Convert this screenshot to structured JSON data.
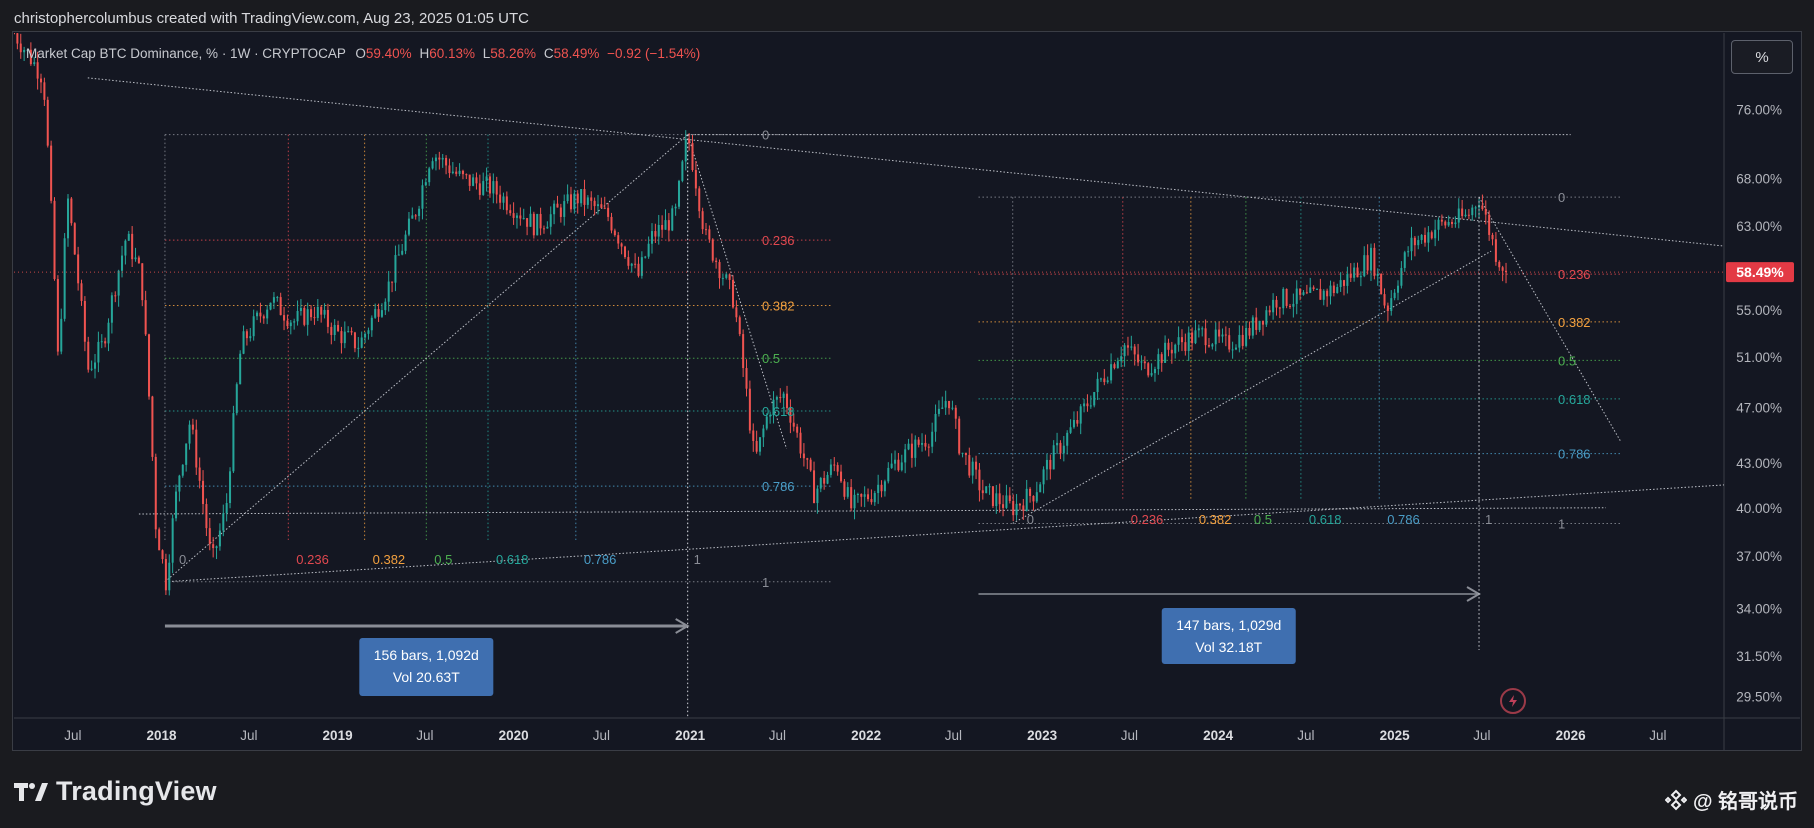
{
  "header": {
    "attribution": "christophercolumbus created with TradingView.com, Aug 23, 2025 01:05 UTC"
  },
  "legend": {
    "title": "Market Cap BTC Dominance, % · 1W · CRYPTOCAP",
    "o_label": "O",
    "o_value": "59.40%",
    "h_label": "H",
    "h_value": "60.13%",
    "l_label": "L",
    "l_value": "58.26%",
    "c_label": "C",
    "c_value": "58.49%",
    "change": "−0.92 (−1.54%)"
  },
  "scale_button": {
    "label": "%"
  },
  "footer": {
    "brand": "TradingView",
    "watermark": "@ 铭哥说币"
  },
  "colors": {
    "up": "#26a69a",
    "down": "#ef5350",
    "background": "#141722",
    "fib_0236": "#e0484f",
    "fib_0382": "#f2a03f",
    "fib_05": "#4caf50",
    "fib_0618": "#26a69a",
    "fib_0786": "#4a9dc7",
    "fib_neutral": "#8a8d96",
    "measure_box": "#3f6fb0"
  },
  "chart_data": {
    "type": "candlestick",
    "title": "Market Cap BTC Dominance, %",
    "interval": "1W",
    "ylabel": "%",
    "y_scale": "log",
    "ylim": [
      28.5,
      86
    ],
    "y_ticks": [
      76,
      68,
      63,
      59,
      55,
      51,
      47,
      43,
      40,
      37,
      34,
      31.5,
      29.5
    ],
    "y_tick_labels": [
      "76.00%",
      "68.00%",
      "63.00%",
      "",
      "55.00%",
      "51.00%",
      "47.00%",
      "43.00%",
      "40.00%",
      "37.00%",
      "34.00%",
      "31.50%",
      "29.50%"
    ],
    "xlim": [
      "2017-03-01",
      "2026-11-15"
    ],
    "x_ticks": [
      {
        "date": "2017-07-01",
        "label": "Jul"
      },
      {
        "date": "2018-01-01",
        "label": "2018"
      },
      {
        "date": "2018-07-01",
        "label": "Jul"
      },
      {
        "date": "2019-01-01",
        "label": "2019"
      },
      {
        "date": "2019-07-01",
        "label": "Jul"
      },
      {
        "date": "2020-01-01",
        "label": "2020"
      },
      {
        "date": "2020-07-01",
        "label": "Jul"
      },
      {
        "date": "2021-01-01",
        "label": "2021"
      },
      {
        "date": "2021-07-01",
        "label": "Jul"
      },
      {
        "date": "2022-01-01",
        "label": "2022"
      },
      {
        "date": "2022-07-01",
        "label": "Jul"
      },
      {
        "date": "2023-01-01",
        "label": "2023"
      },
      {
        "date": "2023-07-01",
        "label": "Jul"
      },
      {
        "date": "2024-01-01",
        "label": "2024"
      },
      {
        "date": "2024-07-01",
        "label": "Jul"
      },
      {
        "date": "2025-01-01",
        "label": "2025"
      },
      {
        "date": "2025-07-01",
        "label": "Jul"
      },
      {
        "date": "2026-01-01",
        "label": "2026"
      },
      {
        "date": "2026-07-01",
        "label": "Jul"
      }
    ],
    "price_path": [
      [
        "2017-03-01",
        86
      ],
      [
        "2017-05-01",
        80
      ],
      [
        "2017-06-01",
        50
      ],
      [
        "2017-06-20",
        66
      ],
      [
        "2017-08-01",
        50
      ],
      [
        "2017-09-01",
        52
      ],
      [
        "2017-10-20",
        62
      ],
      [
        "2017-11-20",
        58
      ],
      [
        "2017-12-20",
        39
      ],
      [
        "2018-01-10",
        35.5
      ],
      [
        "2018-02-05",
        42
      ],
      [
        "2018-03-01",
        46
      ],
      [
        "2018-04-15",
        36.5
      ],
      [
        "2018-05-15",
        40
      ],
      [
        "2018-06-15",
        52
      ],
      [
        "2018-08-15",
        56
      ],
      [
        "2018-10-01",
        54
      ],
      [
        "2018-11-15",
        55
      ],
      [
        "2019-01-01",
        53
      ],
      [
        "2019-02-15",
        52
      ],
      [
        "2019-04-15",
        57
      ],
      [
        "2019-06-15",
        65
      ],
      [
        "2019-07-15",
        71
      ],
      [
        "2019-09-15",
        68
      ],
      [
        "2019-11-15",
        67
      ],
      [
        "2020-02-15",
        63
      ],
      [
        "2020-05-15",
        66
      ],
      [
        "2020-07-15",
        64
      ],
      [
        "2020-09-15",
        58
      ],
      [
        "2020-10-15",
        62
      ],
      [
        "2020-12-01",
        64
      ],
      [
        "2020-12-27",
        73
      ],
      [
        "2021-02-01",
        62
      ],
      [
        "2021-04-01",
        56
      ],
      [
        "2021-05-15",
        43
      ],
      [
        "2021-06-15",
        47
      ],
      [
        "2021-07-15",
        48
      ],
      [
        "2021-09-15",
        41
      ],
      [
        "2021-11-01",
        43
      ],
      [
        "2021-12-01",
        40
      ],
      [
        "2022-01-15",
        41
      ],
      [
        "2022-03-01",
        43
      ],
      [
        "2022-05-15",
        45
      ],
      [
        "2022-06-20",
        48
      ],
      [
        "2022-07-15",
        44
      ],
      [
        "2022-09-01",
        41
      ],
      [
        "2022-11-01",
        40
      ],
      [
        "2022-12-15",
        41
      ],
      [
        "2023-01-15",
        43
      ],
      [
        "2023-03-15",
        46
      ],
      [
        "2023-05-01",
        49
      ],
      [
        "2023-06-20",
        52
      ],
      [
        "2023-08-01",
        50
      ],
      [
        "2023-10-01",
        52
      ],
      [
        "2023-12-01",
        53
      ],
      [
        "2024-01-15",
        52
      ],
      [
        "2024-03-01",
        53
      ],
      [
        "2024-05-01",
        56
      ],
      [
        "2024-07-01",
        56
      ],
      [
        "2024-09-01",
        57
      ],
      [
        "2024-11-15",
        60
      ],
      [
        "2024-12-15",
        55
      ],
      [
        "2025-02-01",
        61
      ],
      [
        "2025-04-01",
        63
      ],
      [
        "2025-06-01",
        64
      ],
      [
        "2025-06-25",
        66
      ],
      [
        "2025-08-01",
        60
      ],
      [
        "2025-08-23",
        58.49
      ]
    ],
    "last_price": 58.49,
    "last_price_label": "58.49%",
    "last_ohlc": {
      "open": 59.4,
      "high": 60.13,
      "low": 58.26,
      "close": 58.49
    },
    "fib_left": {
      "start": [
        "2018-01-08",
        35.5
      ],
      "end": [
        "2020-12-27",
        73
      ],
      "labels": [
        "0",
        "0.236",
        "0.382",
        "0.5",
        "0.618",
        "0.786",
        "1"
      ]
    },
    "fib_right": {
      "start": [
        "2022-11-01",
        39
      ],
      "end": [
        "2025-06-25",
        66
      ],
      "labels": [
        "0",
        "0.236",
        "0.382",
        "0.5",
        "0.618",
        "0.786",
        "1"
      ]
    },
    "measurements": [
      {
        "from": "2018-01-08",
        "to": "2020-12-27",
        "text1": "156 bars, 1,092d",
        "text2": "Vol 20.63T"
      },
      {
        "from": "2022-08-22",
        "to": "2025-06-25",
        "text1": "147 bars, 1,029d",
        "text2": "Vol 32.18T"
      }
    ]
  }
}
